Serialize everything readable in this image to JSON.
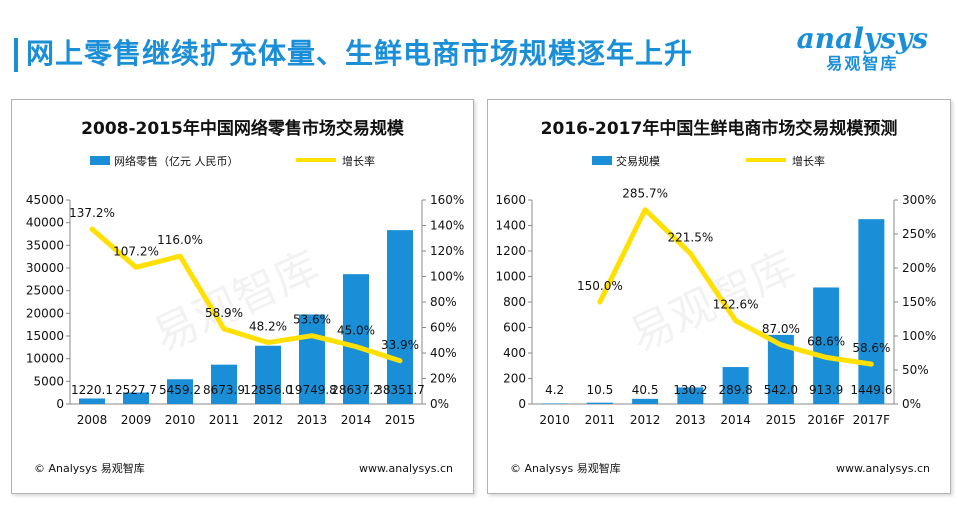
{
  "header": {
    "title": "网上零售继续扩充体量、生鲜电商市场规模逐年上升",
    "brand_logo": "analysys",
    "brand_cn": "易观智库"
  },
  "colors": {
    "bar": "#1a8fd8",
    "line": "#ffe000",
    "accent": "#1a8fd8"
  },
  "chart_data": [
    {
      "type": "bar",
      "title": "2008-2015年中国网络零售市场交易规模",
      "categories": [
        "2008",
        "2009",
        "2010",
        "2011",
        "2012",
        "2013",
        "2014",
        "2015"
      ],
      "series": [
        {
          "name": "网络零售（亿元 人民币）",
          "kind": "bar",
          "values": [
            1220.1,
            2527.7,
            5459.2,
            8673.9,
            12856.0,
            19749.8,
            28637.2,
            38351.7
          ],
          "labels": [
            "1220.1",
            "2527.7",
            "5459.2",
            "8673.9",
            "12856.0",
            "19749.8",
            "28637.2",
            "38351.7"
          ]
        },
        {
          "name": "增长率",
          "kind": "line",
          "axis": "right",
          "values": [
            137.2,
            107.2,
            116.0,
            58.9,
            48.2,
            53.6,
            45.0,
            33.9
          ],
          "labels": [
            "137.2%",
            "107.2%",
            "116.0%",
            "58.9%",
            "48.2%",
            "53.6%",
            "45.0%",
            "33.9%"
          ]
        }
      ],
      "ylim": [
        0,
        45000
      ],
      "y_ticks": [
        "0",
        "5000",
        "10000",
        "15000",
        "20000",
        "25000",
        "30000",
        "35000",
        "40000",
        "45000"
      ],
      "y2lim": [
        0,
        160
      ],
      "y2_ticks": [
        "0%",
        "20%",
        "40%",
        "60%",
        "80%",
        "100%",
        "120%",
        "140%",
        "160%"
      ],
      "footer_left": "© Analysys 易观智库",
      "footer_right": "www.analysys.cn",
      "watermark": "易观智库"
    },
    {
      "type": "bar",
      "title": "2016-2017年中国生鲜电商市场交易规模预测",
      "categories": [
        "2010",
        "2011",
        "2012",
        "2013",
        "2014",
        "2015",
        "2016F",
        "2017F"
      ],
      "series": [
        {
          "name": "交易规模",
          "kind": "bar",
          "values": [
            4.2,
            10.5,
            40.5,
            130.2,
            289.8,
            542.0,
            913.9,
            1449.6
          ],
          "labels": [
            "4.2",
            "10.5",
            "40.5",
            "130.2",
            "289.8",
            "542.0",
            "913.9",
            "1449.6"
          ]
        },
        {
          "name": "增长率",
          "kind": "line",
          "axis": "right",
          "values": [
            null,
            150.0,
            285.7,
            221.5,
            122.6,
            87.0,
            68.6,
            58.6
          ],
          "labels": [
            "",
            "150.0%",
            "285.7%",
            "221.5%",
            "122.6%",
            "87.0%",
            "68.6%",
            "58.6%"
          ]
        }
      ],
      "ylim": [
        0,
        1600
      ],
      "y_ticks": [
        "0",
        "200",
        "400",
        "600",
        "800",
        "1000",
        "1200",
        "1400",
        "1600"
      ],
      "y2lim": [
        0,
        300
      ],
      "y2_ticks": [
        "0%",
        "50%",
        "100%",
        "150%",
        "200%",
        "250%",
        "300%"
      ],
      "footer_left": "© Analysys 易观智库",
      "footer_right": "www.analysys.cn",
      "watermark": "易观智库"
    }
  ]
}
